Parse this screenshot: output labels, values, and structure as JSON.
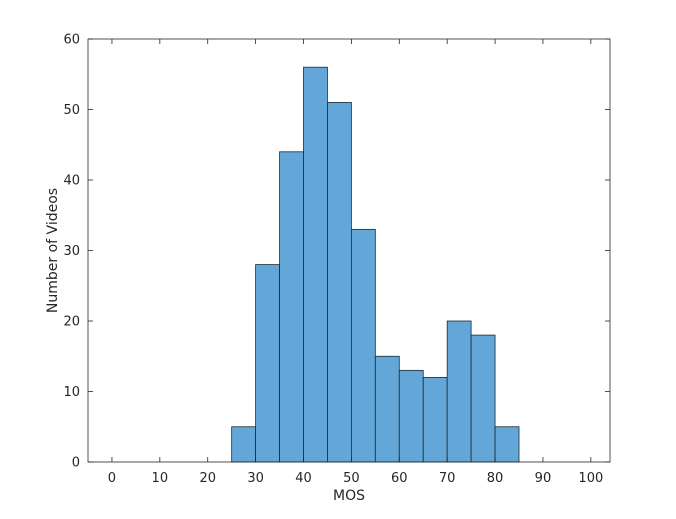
{
  "chart_data": {
    "type": "bar",
    "title": "",
    "xlabel": "MOS",
    "ylabel": "Number of Videos",
    "xlim": [
      -5,
      104
    ],
    "ylim": [
      0,
      60
    ],
    "bin_width": 5,
    "bins": [
      {
        "start": 25,
        "end": 30,
        "count": 5
      },
      {
        "start": 30,
        "end": 35,
        "count": 28
      },
      {
        "start": 35,
        "end": 40,
        "count": 44
      },
      {
        "start": 40,
        "end": 45,
        "count": 56
      },
      {
        "start": 45,
        "end": 50,
        "count": 51
      },
      {
        "start": 50,
        "end": 55,
        "count": 33
      },
      {
        "start": 55,
        "end": 60,
        "count": 15
      },
      {
        "start": 60,
        "end": 65,
        "count": 13
      },
      {
        "start": 65,
        "end": 70,
        "count": 12
      },
      {
        "start": 70,
        "end": 75,
        "count": 20
      },
      {
        "start": 75,
        "end": 80,
        "count": 18
      },
      {
        "start": 80,
        "end": 85,
        "count": 5
      }
    ],
    "x_ticks": [
      0,
      10,
      20,
      30,
      40,
      50,
      60,
      70,
      80,
      90,
      100
    ],
    "x_tick_labels": [
      "0",
      "10",
      "20",
      "30",
      "40",
      "50",
      "60",
      "70",
      "80",
      "90",
      "100"
    ],
    "y_ticks": [
      0,
      10,
      20,
      30,
      40,
      50,
      60
    ],
    "y_tick_labels": [
      "0",
      "10",
      "20",
      "30",
      "40",
      "50",
      "60"
    ],
    "grid": false,
    "bar_color": "#62a7d8",
    "bar_edge_color": "#1f2a33",
    "axis_color": "#262626"
  }
}
